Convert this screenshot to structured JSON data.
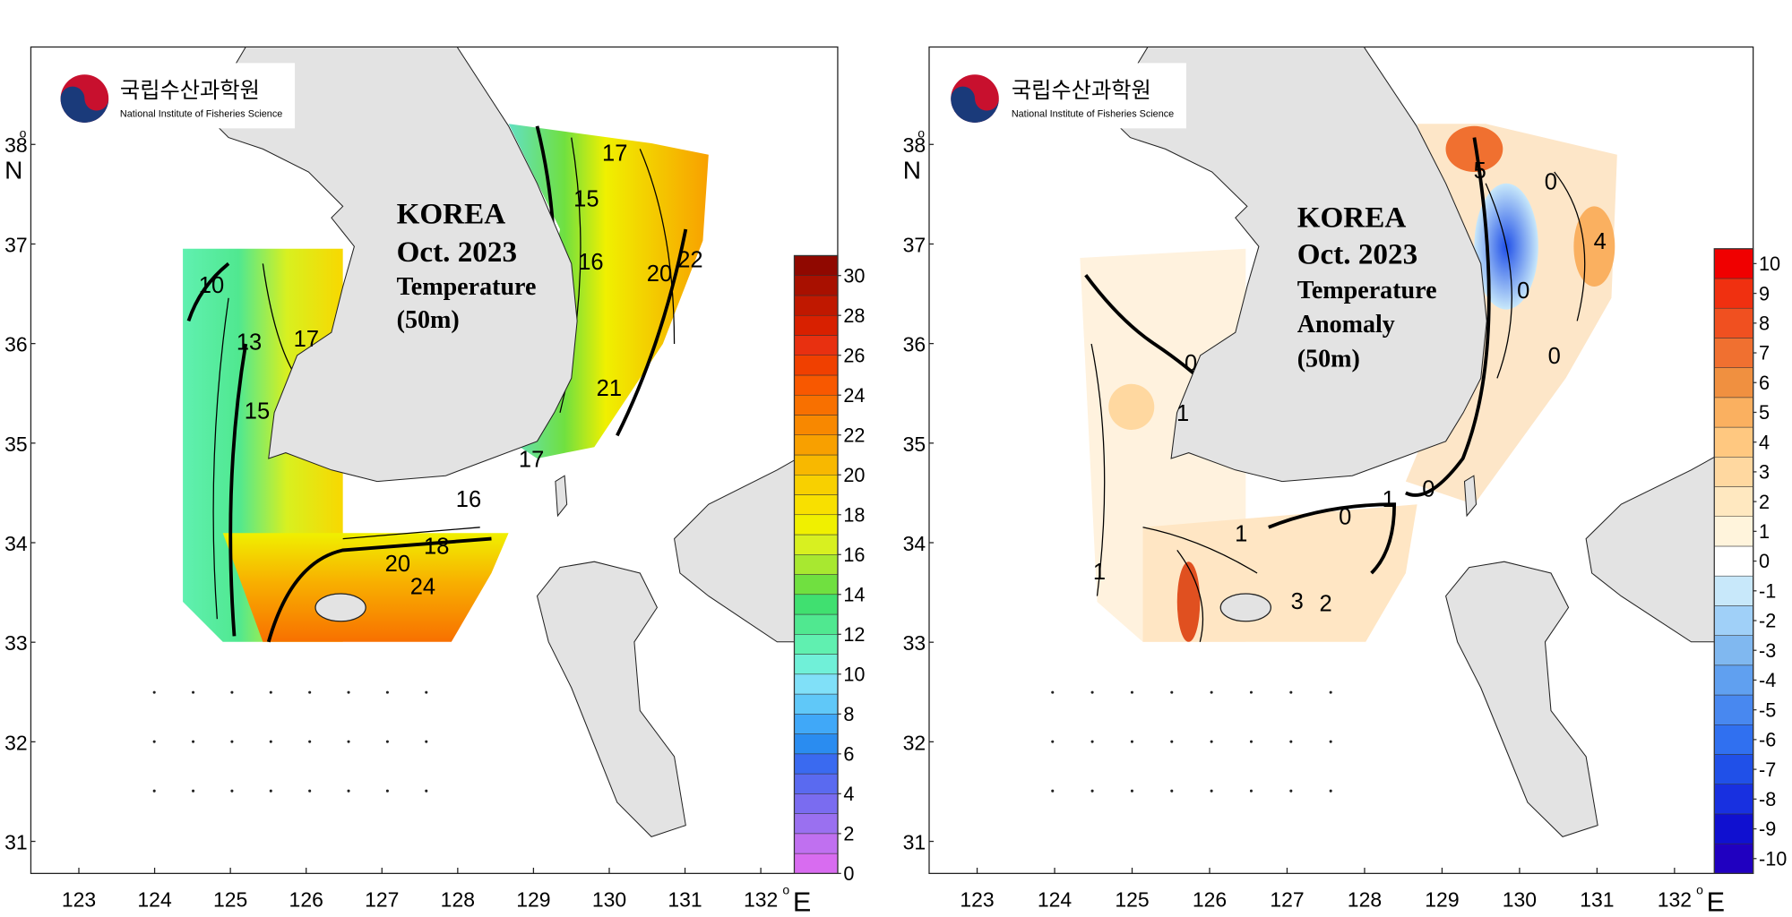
{
  "panels": [
    {
      "logo": {
        "korean": "국립수산과학원",
        "english": "National Institute of Fisheries Science"
      },
      "title": [
        "KOREA",
        "Oct. 2023",
        "Temperature",
        "(50m)"
      ],
      "lat_ticks": [
        31,
        32,
        33,
        34,
        35,
        36,
        37,
        38
      ],
      "lat_unit": "N",
      "lon_ticks": [
        123,
        124,
        125,
        126,
        127,
        128,
        129,
        130,
        131,
        132
      ],
      "lon_unit": "E",
      "degree": "o",
      "colorbar": {
        "lim": [
          0,
          31
        ],
        "ticks": [
          0,
          2,
          4,
          6,
          8,
          10,
          12,
          14,
          16,
          18,
          20,
          22,
          24,
          26,
          28,
          30
        ],
        "colors": [
          "#d86cf0",
          "#c070f0",
          "#9a70f0",
          "#7a6cf0",
          "#5a6af0",
          "#3a6af0",
          "#2a8cf0",
          "#40a8f8",
          "#60c8f8",
          "#80e0f8",
          "#70f0d8",
          "#60f0b0",
          "#50e890",
          "#40e070",
          "#70e040",
          "#a8e830",
          "#d8f020",
          "#f0f000",
          "#f8e000",
          "#f8d000",
          "#f8b800",
          "#f8a000",
          "#f88800",
          "#f87000",
          "#f85800",
          "#f04000",
          "#e83010",
          "#d82000",
          "#c01800",
          "#a81000",
          "#900800"
        ]
      },
      "contour_labels": [
        10,
        13,
        17,
        15,
        16,
        17,
        15,
        16,
        20,
        22,
        21,
        18,
        20,
        24,
        17
      ]
    },
    {
      "logo": {
        "korean": "국립수산과학원",
        "english": "National Institute of Fisheries Science"
      },
      "title": [
        "KOREA",
        "Oct. 2023",
        "Temperature",
        "Anomaly",
        "(50m)"
      ],
      "lat_ticks": [
        31,
        32,
        33,
        34,
        35,
        36,
        37,
        38
      ],
      "lat_unit": "N",
      "lon_ticks": [
        123,
        124,
        125,
        126,
        127,
        128,
        129,
        130,
        131,
        132
      ],
      "lon_unit": "E",
      "degree": "o",
      "colorbar": {
        "lim": [
          -10.5,
          10.5
        ],
        "ticks": [
          -10,
          -9,
          -8,
          -7,
          -6,
          -5,
          -4,
          -3,
          -2,
          -1,
          0,
          1,
          2,
          3,
          4,
          5,
          6,
          7,
          8,
          9,
          10
        ],
        "colors": [
          "#2000c0",
          "#1010d0",
          "#1830e0",
          "#2050e8",
          "#3070f0",
          "#4888f0",
          "#60a0f0",
          "#80b8f0",
          "#a0d0f8",
          "#c8e8fa",
          "#ffffff",
          "#fff4dc",
          "#ffe8c0",
          "#ffd8a0",
          "#ffc880",
          "#fab060",
          "#f09040",
          "#f07030",
          "#f05020",
          "#f03010",
          "#f00000"
        ]
      },
      "contour_labels": [
        0,
        1,
        1,
        1,
        0,
        1,
        3,
        2,
        0,
        4,
        5,
        0,
        0,
        0
      ]
    }
  ]
}
